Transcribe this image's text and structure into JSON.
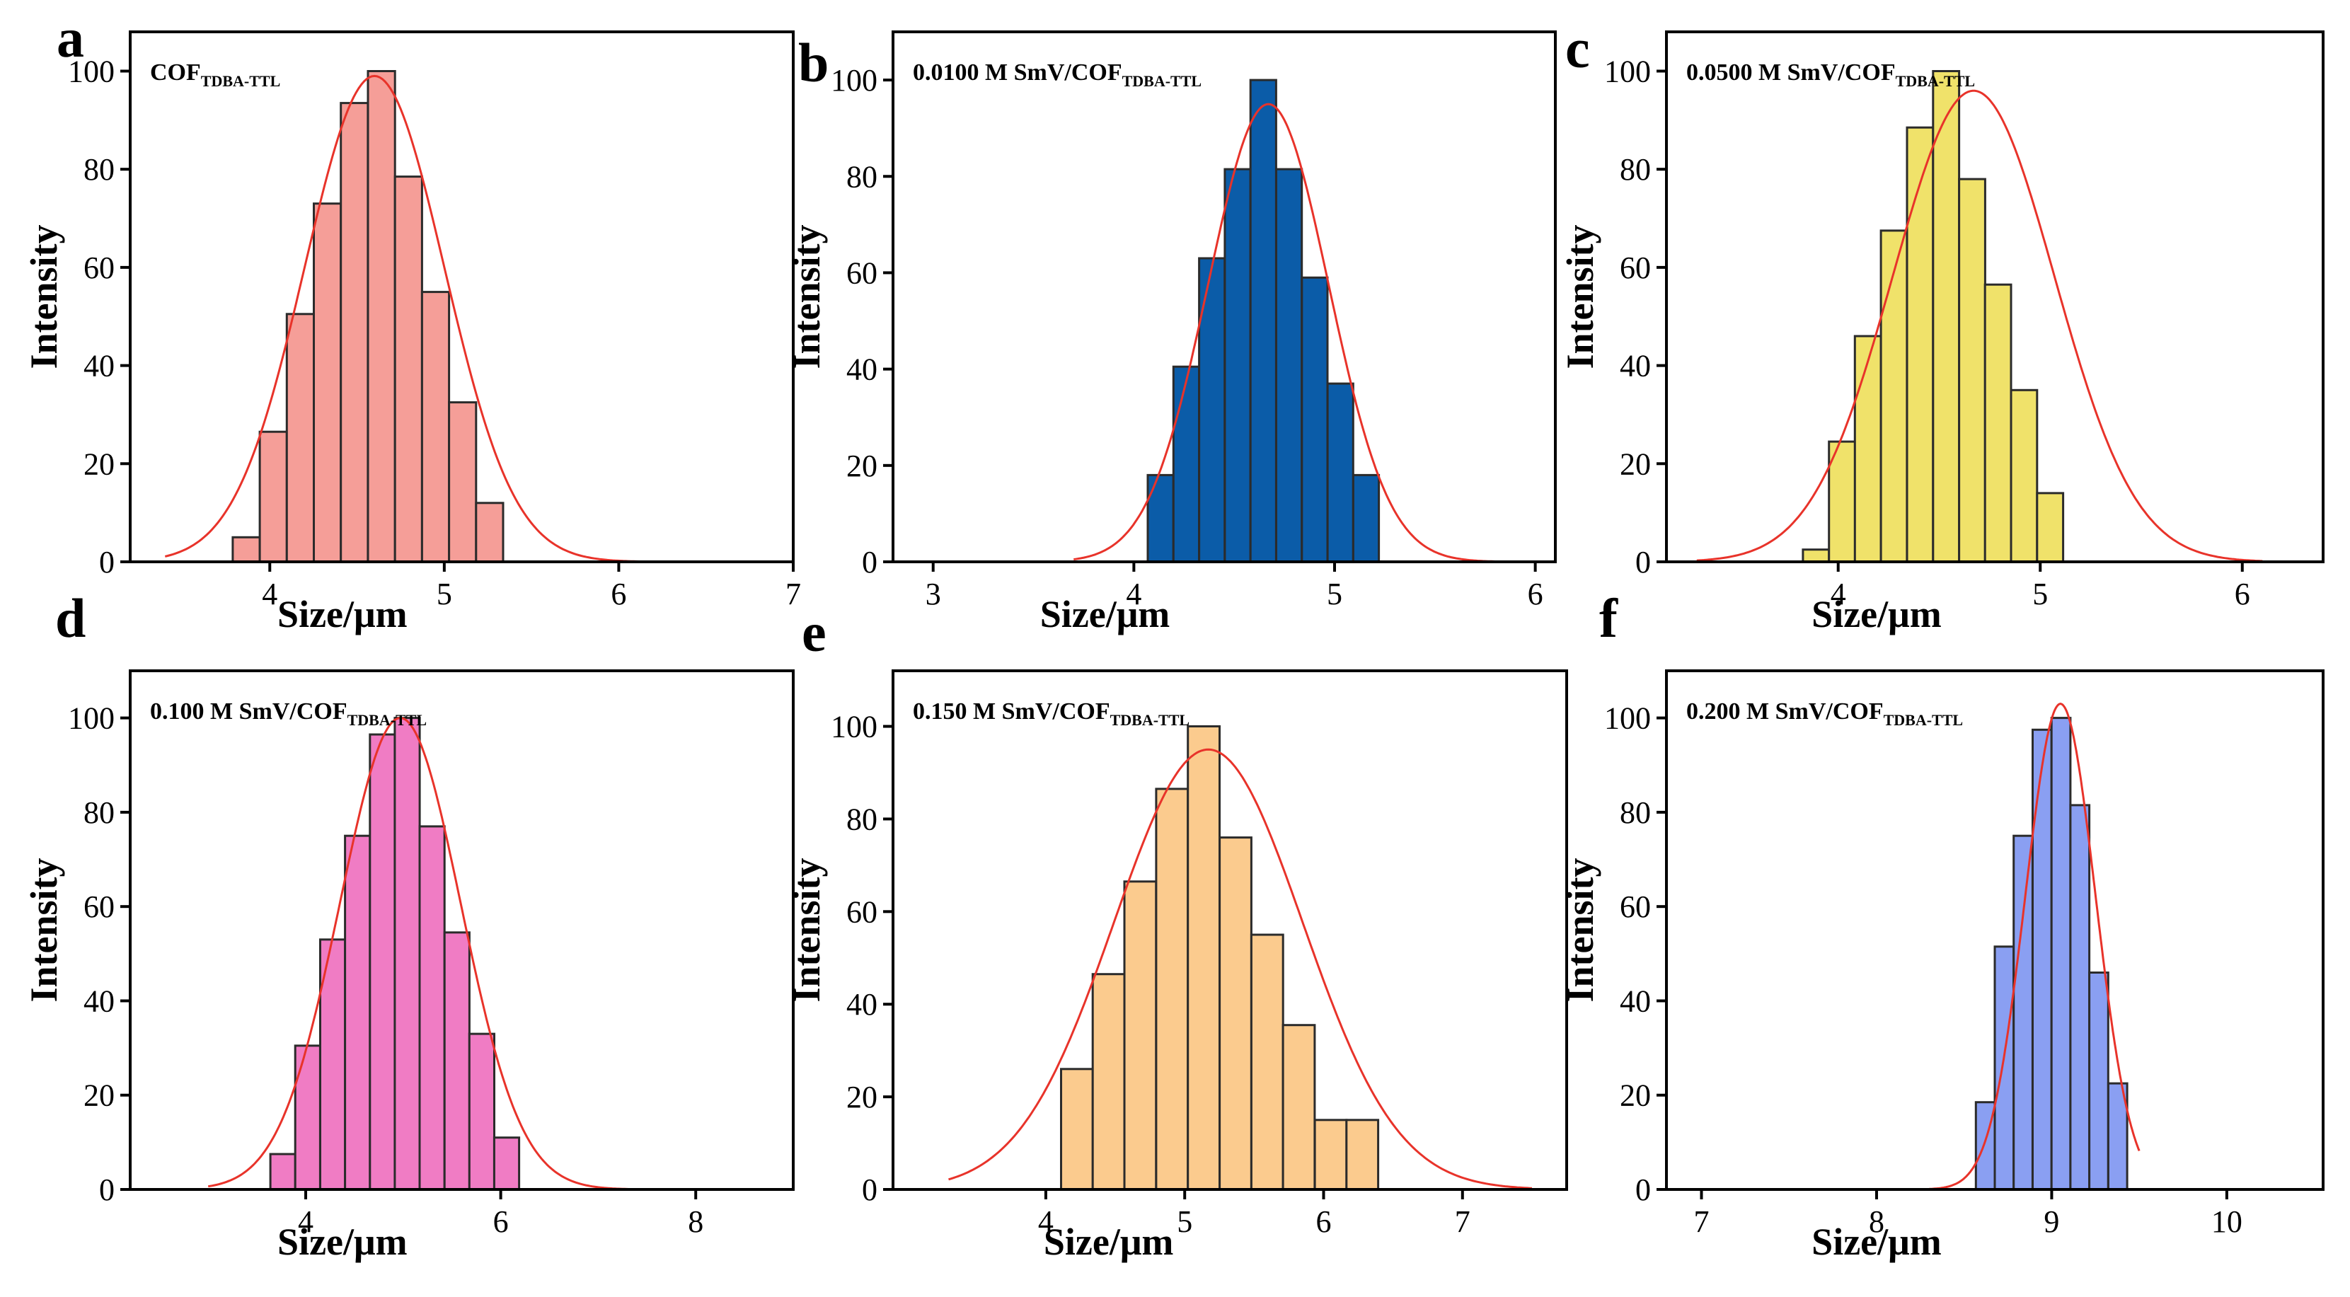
{
  "figure": {
    "axis": {
      "xlabel": "Size/μm",
      "ylabel": "Intensity"
    },
    "colors": {
      "fit_line": "#e8332a",
      "bar_edge": "#2b2b2b",
      "axis": "#000000"
    }
  },
  "chart_data": [
    {
      "panel": "a",
      "type": "bar",
      "annotation": {
        "main": "COF",
        "sub": "TDBA-TTL"
      },
      "bar_color": "#f59e98",
      "xlim": [
        3.2,
        7
      ],
      "ylim": [
        0,
        108
      ],
      "xticks": [
        4,
        5,
        6,
        7
      ],
      "yticks": [
        0,
        20,
        40,
        60,
        80,
        100
      ],
      "bar_width": 0.155,
      "bars": [
        {
          "x": 3.865,
          "y": 5
        },
        {
          "x": 4.02,
          "y": 26.5
        },
        {
          "x": 4.175,
          "y": 50.5
        },
        {
          "x": 4.33,
          "y": 73
        },
        {
          "x": 4.485,
          "y": 93.5
        },
        {
          "x": 4.64,
          "y": 100
        },
        {
          "x": 4.795,
          "y": 78.5
        },
        {
          "x": 4.95,
          "y": 55
        },
        {
          "x": 5.105,
          "y": 32.5
        },
        {
          "x": 5.26,
          "y": 12
        }
      ],
      "fit": {
        "amplitude": 99,
        "center": 4.6,
        "sigma": 0.4,
        "from": 3.4,
        "to": 7.0
      }
    },
    {
      "panel": "b",
      "type": "bar",
      "annotation": {
        "main": "0.0100 M  SmV/COF",
        "sub": "TDBA-TTL"
      },
      "bar_color": "#0b5ca8",
      "xlim": [
        2.8,
        6.1
      ],
      "ylim": [
        0,
        110
      ],
      "xticks": [
        3,
        4,
        5,
        6
      ],
      "yticks": [
        0,
        20,
        40,
        60,
        80,
        100
      ],
      "bar_width": 0.1276,
      "bars": [
        {
          "x": 4.133,
          "y": 18
        },
        {
          "x": 4.261,
          "y": 40.5
        },
        {
          "x": 4.389,
          "y": 63
        },
        {
          "x": 4.517,
          "y": 81.5
        },
        {
          "x": 4.645,
          "y": 100
        },
        {
          "x": 4.773,
          "y": 81.5
        },
        {
          "x": 4.901,
          "y": 59
        },
        {
          "x": 5.029,
          "y": 37
        },
        {
          "x": 5.157,
          "y": 18
        }
      ],
      "fit": {
        "amplitude": 95,
        "center": 4.67,
        "sigma": 0.3,
        "from": 3.7,
        "to": 5.8
      }
    },
    {
      "panel": "c",
      "type": "bar",
      "annotation": {
        "main": "0.0500 M  SmV/COF",
        "sub": "TDBA-TTL"
      },
      "bar_color": "#f0e26a",
      "xlim": [
        3.15,
        6.4
      ],
      "ylim": [
        0,
        108
      ],
      "xticks": [
        4,
        5,
        6
      ],
      "yticks": [
        0,
        20,
        40,
        60,
        80,
        100
      ],
      "bar_width": 0.1288,
      "bars": [
        {
          "x": 3.89,
          "y": 2.5
        },
        {
          "x": 4.019,
          "y": 24.5
        },
        {
          "x": 4.147,
          "y": 46
        },
        {
          "x": 4.276,
          "y": 67.5
        },
        {
          "x": 4.405,
          "y": 88.5
        },
        {
          "x": 4.534,
          "y": 100
        },
        {
          "x": 4.663,
          "y": 78
        },
        {
          "x": 4.791,
          "y": 56.5
        },
        {
          "x": 4.92,
          "y": 35
        },
        {
          "x": 5.049,
          "y": 14
        }
      ],
      "fit": {
        "amplitude": 96,
        "center": 4.67,
        "sigma": 0.4,
        "from": 3.3,
        "to": 6.1
      }
    },
    {
      "panel": "d",
      "type": "bar",
      "annotation": {
        "main": "0.100 M  SmV/COF",
        "sub": "TDBA-TTL"
      },
      "bar_color": "#f07cc4",
      "xlim": [
        2.2,
        9.0
      ],
      "ylim": [
        0,
        110
      ],
      "xticks": [
        4,
        6,
        8
      ],
      "yticks": [
        0,
        20,
        40,
        60,
        80,
        100
      ],
      "bar_width": 0.2551,
      "bars": [
        {
          "x": 3.765,
          "y": 7.5
        },
        {
          "x": 4.02,
          "y": 30.5
        },
        {
          "x": 4.276,
          "y": 53
        },
        {
          "x": 4.531,
          "y": 75
        },
        {
          "x": 4.786,
          "y": 96.5
        },
        {
          "x": 5.041,
          "y": 100
        },
        {
          "x": 5.296,
          "y": 77
        },
        {
          "x": 5.551,
          "y": 54.5
        },
        {
          "x": 5.806,
          "y": 33
        },
        {
          "x": 6.061,
          "y": 11
        }
      ],
      "fit": {
        "amplitude": 100,
        "center": 4.97,
        "sigma": 0.62,
        "from": 3.0,
        "to": 8.0
      }
    },
    {
      "panel": "e",
      "type": "bar",
      "annotation": {
        "main": "0.150 M  SmV/COF",
        "sub": "TDBA-TTL"
      },
      "bar_color": "#fbcb8e",
      "xlim": [
        2.9,
        7.75
      ],
      "ylim": [
        0,
        112
      ],
      "xticks": [
        4,
        5,
        6,
        7
      ],
      "yticks": [
        0,
        20,
        40,
        60,
        80,
        100
      ],
      "bar_width": 0.2284,
      "bars": [
        {
          "x": 4.224,
          "y": 26
        },
        {
          "x": 4.452,
          "y": 46.5
        },
        {
          "x": 4.68,
          "y": 66.5
        },
        {
          "x": 4.909,
          "y": 86.5
        },
        {
          "x": 5.137,
          "y": 100
        },
        {
          "x": 5.366,
          "y": 76
        },
        {
          "x": 5.594,
          "y": 55
        },
        {
          "x": 5.822,
          "y": 35.5
        },
        {
          "x": 6.051,
          "y": 15
        },
        {
          "x": 6.279,
          "y": 15
        }
      ],
      "fit": {
        "amplitude": 95,
        "center": 5.17,
        "sigma": 0.68,
        "from": 3.3,
        "to": 7.5
      }
    },
    {
      "panel": "f",
      "type": "bar",
      "annotation": {
        "main": "0.200 M  SmV/COF",
        "sub": "TDBA-TTL"
      },
      "bar_color": "#8a9ff2",
      "xlim": [
        6.8,
        10.55
      ],
      "ylim": [
        0,
        110
      ],
      "xticks": [
        7,
        8,
        9,
        10
      ],
      "yticks": [
        0,
        20,
        40,
        60,
        80,
        100
      ],
      "bar_width": 0.1079,
      "bars": [
        {
          "x": 8.621,
          "y": 18.5
        },
        {
          "x": 8.729,
          "y": 51.5
        },
        {
          "x": 8.837,
          "y": 75
        },
        {
          "x": 8.945,
          "y": 97.5
        },
        {
          "x": 9.053,
          "y": 100
        },
        {
          "x": 9.161,
          "y": 81.5
        },
        {
          "x": 9.269,
          "y": 46
        },
        {
          "x": 9.377,
          "y": 22.5
        }
      ],
      "fit": {
        "amplitude": 103,
        "center": 9.05,
        "sigma": 0.2,
        "from": 8.3,
        "to": 9.5
      }
    }
  ]
}
